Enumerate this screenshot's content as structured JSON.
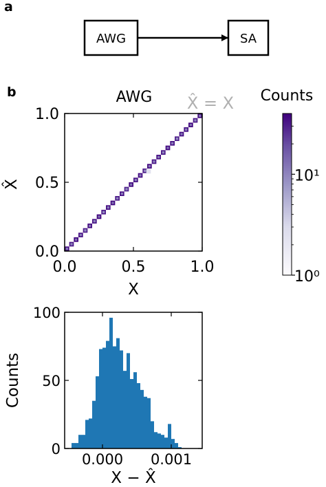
{
  "panel_a": {
    "label": "a",
    "box_left": "AWG",
    "box_right": "SA"
  },
  "panel_b": {
    "label": "b"
  },
  "chart_data": [
    {
      "type": "heatmap",
      "title": "AWG",
      "annotation": "X̂ = X",
      "xlabel": "X",
      "ylabel": "X̂",
      "xlim": [
        0.0,
        1.0
      ],
      "ylim": [
        0.0,
        1.0
      ],
      "xticks": [
        "0.0",
        "0.5",
        "1.0"
      ],
      "yticks": [
        "0.0",
        "0.5",
        "1.0"
      ],
      "grid": false,
      "colormap": "Purples",
      "colorbar": {
        "label": "Counts",
        "scale": "log",
        "range": [
          1,
          40
        ],
        "ticks": [
          "10⁰",
          "10¹"
        ],
        "tick_values": [
          1,
          10
        ]
      },
      "diagonal": {
        "cells": 30,
        "values": [
          35,
          30,
          38,
          33,
          28,
          36,
          31,
          40,
          29,
          34,
          37,
          30,
          33,
          27,
          38,
          32,
          35,
          29,
          36,
          31,
          34,
          30,
          37,
          33,
          28,
          35,
          32,
          38,
          30,
          36
        ]
      },
      "off_diagonal": [
        {
          "x": 0.61,
          "y": 0.58,
          "count": 2
        }
      ]
    },
    {
      "type": "bar",
      "subtype": "histogram",
      "xlabel": "X − X̂",
      "ylabel": "Counts",
      "xlim": [
        -0.00055,
        0.00145
      ],
      "ylim": [
        0,
        100
      ],
      "xticks": [
        "0.000",
        "0.001"
      ],
      "xtick_values": [
        0.0,
        0.001
      ],
      "yticks": [
        "0",
        "50",
        "100"
      ],
      "ytick_values": [
        0,
        50,
        100
      ],
      "color": "#1f77b4",
      "bin_start": -0.00045,
      "bin_width": 5e-05,
      "counts": [
        4,
        4,
        10,
        10,
        21,
        22,
        35,
        53,
        73,
        74,
        79,
        96,
        75,
        81,
        72,
        57,
        70,
        51,
        56,
        48,
        43,
        38,
        37,
        20,
        12,
        11,
        10,
        8,
        18,
        7,
        4,
        1
      ]
    }
  ],
  "colors": {
    "diag_dark": "#4a1486",
    "hist_blue": "#1f77b4",
    "annotation_gray": "#b0b0b0"
  }
}
